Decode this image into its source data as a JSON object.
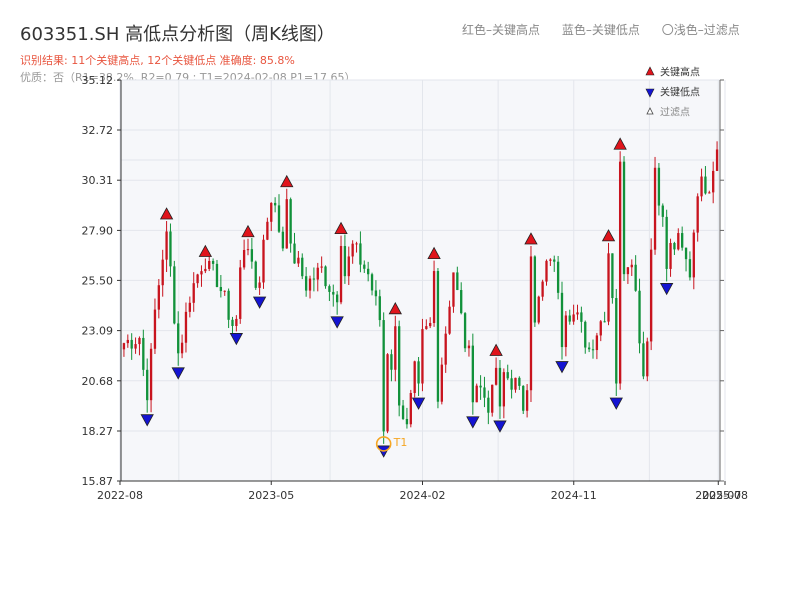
{
  "header": {
    "title": "603351.SH 高低点分析图（周K线图）",
    "legend_red": "红色–关键高点",
    "legend_blue": "蓝色–关键低点",
    "legend_filter": "〇浅色–过滤点",
    "result_line": "识别结果: 11个关键高点, 12个关键低点  准确度: 85.8%",
    "quality_line": "优质：否（R1=38.2%, R2=0.79 ; T1=2024-02-08 P1=17.65）"
  },
  "colors": {
    "up": "#c8141e",
    "down": "#11913a",
    "high_marker": "#e0141c",
    "low_marker": "#1414d2",
    "t1": "#f5a623",
    "plot_bg": "#f6f7fa",
    "grid": "#e3e6ec"
  },
  "chart_data": {
    "type": "candlestick",
    "x_start": "2022-08",
    "x_end": "2025-08",
    "xticks": [
      {
        "t": 0,
        "label": "2022-08"
      },
      {
        "t": 9,
        "label": "2023-05"
      },
      {
        "t": 18,
        "label": "2024-02"
      },
      {
        "t": 27,
        "label": "2024-11"
      },
      {
        "t": 36,
        "label": "2025-08"
      },
      {
        "t": 35.6,
        "label": "2025-07"
      }
    ],
    "yticks": [
      15.87,
      18.27,
      20.68,
      23.09,
      25.5,
      27.9,
      30.31,
      32.72,
      35.12
    ],
    "ylim": [
      15.87,
      35.12
    ],
    "num_weeks": 154,
    "candle_anchors": [
      [
        0,
        22.5
      ],
      [
        4,
        22.8
      ],
      [
        6,
        19.6
      ],
      [
        8,
        24.0
      ],
      [
        11,
        28.1
      ],
      [
        14,
        21.8
      ],
      [
        17,
        24.8
      ],
      [
        20,
        26.3
      ],
      [
        24,
        25.6
      ],
      [
        28,
        23.4
      ],
      [
        31,
        27.2
      ],
      [
        34,
        25.2
      ],
      [
        38,
        29.6
      ],
      [
        41,
        27.2
      ],
      [
        44,
        26.6
      ],
      [
        47,
        25.3
      ],
      [
        51,
        26.0
      ],
      [
        55,
        24.5
      ],
      [
        59,
        27.1
      ],
      [
        63,
        25.8
      ],
      [
        69,
        21.5
      ],
      [
        73,
        18.3
      ],
      [
        76,
        22.5
      ],
      [
        79,
        23.3
      ],
      [
        81,
        20.2
      ],
      [
        85,
        26.0
      ],
      [
        88,
        22.5
      ],
      [
        91,
        20.6
      ],
      [
        94,
        19.6
      ],
      [
        98,
        21.0
      ],
      [
        101,
        20.5
      ],
      [
        103,
        19.5
      ],
      [
        107,
        24.5
      ],
      [
        110,
        26.8
      ],
      [
        113,
        24.5
      ],
      [
        117,
        23.6
      ],
      [
        120,
        22.2
      ],
      [
        124,
        24.0
      ],
      [
        128,
        25.9
      ],
      [
        131,
        26.8
      ],
      [
        134,
        21.0
      ],
      [
        135,
        23.0
      ],
      [
        137,
        31.0
      ],
      [
        140,
        26.9
      ],
      [
        143,
        27.3
      ],
      [
        146,
        25.9
      ],
      [
        148,
        30.0
      ],
      [
        151,
        30.2
      ],
      [
        153,
        32.0
      ]
    ],
    "key_highs": [
      {
        "week": 11,
        "price": 28.35,
        "label": "关键高点"
      },
      {
        "week": 21,
        "price": 26.55,
        "label": "关键高点"
      },
      {
        "week": 32,
        "price": 27.5,
        "label": "关键高点"
      },
      {
        "week": 42,
        "price": 29.9,
        "label": "关键高点"
      },
      {
        "week": 56,
        "price": 27.65,
        "label": "关键高点"
      },
      {
        "week": 70,
        "price": 23.8,
        "label": "关键高点"
      },
      {
        "week": 80,
        "price": 26.45,
        "label": "关键高点"
      },
      {
        "week": 96,
        "price": 21.8,
        "label": "关键高点"
      },
      {
        "week": 105,
        "price": 27.15,
        "label": "关键高点"
      },
      {
        "week": 125,
        "price": 27.3,
        "label": "关键高点"
      },
      {
        "week": 128,
        "price": 31.7,
        "label": "关键高点"
      }
    ],
    "key_lows": [
      {
        "week": 6,
        "price": 19.15,
        "label": "关键低点"
      },
      {
        "week": 14,
        "price": 21.4,
        "label": "关键低点"
      },
      {
        "week": 29,
        "price": 23.05,
        "label": "关键低点"
      },
      {
        "week": 35,
        "price": 24.8,
        "label": "关键低点"
      },
      {
        "week": 55,
        "price": 23.85,
        "label": "关键低点"
      },
      {
        "week": 67,
        "price": 17.65,
        "label": "关键低点"
      },
      {
        "week": 76,
        "price": 19.95,
        "label": "关键低点"
      },
      {
        "week": 90,
        "price": 19.05,
        "label": "关键低点"
      },
      {
        "week": 97,
        "price": 18.85,
        "label": "关键低点"
      },
      {
        "week": 113,
        "price": 21.7,
        "label": "关键低点"
      },
      {
        "week": 127,
        "price": 19.95,
        "label": "关键低点"
      },
      {
        "week": 140,
        "price": 25.45,
        "label": "关键低点"
      }
    ],
    "t1": {
      "week": 67,
      "price": 17.65,
      "label": "T1"
    },
    "legend_items": [
      {
        "marker": "high",
        "label": "关键高点"
      },
      {
        "marker": "low",
        "label": "关键低点"
      },
      {
        "marker": "filter",
        "label": "过滤点"
      }
    ],
    "legend_position": "top-right",
    "grid": true
  }
}
